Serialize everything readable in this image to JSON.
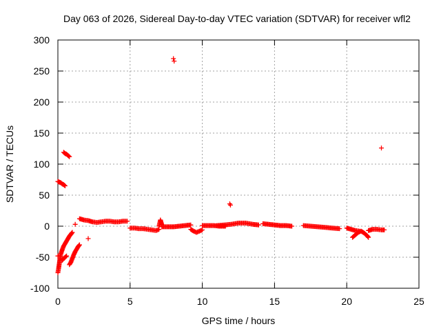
{
  "chart_data": {
    "type": "scatter",
    "title": "Day 063 of 2026, Sidereal Day-to-day VTEC variation (SDTVAR) for receiver wfl2",
    "xlabel": "GPS time / hours",
    "ylabel": "SDTVAR / TECUs",
    "xlim": [
      0,
      25
    ],
    "ylim": [
      -100,
      300
    ],
    "xticks": [
      0,
      5,
      10,
      15,
      20,
      25
    ],
    "yticks": [
      -100,
      -50,
      0,
      50,
      100,
      150,
      200,
      250,
      300
    ],
    "grid": true,
    "marker": "+",
    "color": "#ff0000",
    "series": [
      {
        "name": "SDTVAR",
        "segments": [
          [
            [
              0.0,
              72
            ],
            [
              0.1,
              71
            ],
            [
              0.2,
              70
            ],
            [
              0.3,
              68
            ],
            [
              0.4,
              67
            ],
            [
              0.5,
              65
            ]
          ],
          [
            [
              0.4,
              119
            ],
            [
              0.5,
              117
            ],
            [
              0.6,
              116
            ],
            [
              0.7,
              114
            ],
            [
              0.8,
              112
            ]
          ],
          [
            [
              0.0,
              -75
            ],
            [
              0.05,
              -68
            ],
            [
              0.1,
              -60
            ],
            [
              0.15,
              -52
            ],
            [
              0.2,
              -45
            ],
            [
              0.3,
              -38
            ],
            [
              0.4,
              -32
            ],
            [
              0.5,
              -28
            ],
            [
              0.6,
              -24
            ],
            [
              0.7,
              -20
            ],
            [
              0.8,
              -16
            ],
            [
              0.9,
              -13
            ],
            [
              1.0,
              -10
            ]
          ],
          [
            [
              0.3,
              -55
            ],
            [
              0.4,
              -52
            ],
            [
              0.5,
              -50
            ],
            [
              0.6,
              -48
            ]
          ],
          [
            [
              0.8,
              -62
            ],
            [
              0.9,
              -58
            ],
            [
              1.0,
              -52
            ],
            [
              1.1,
              -46
            ],
            [
              1.2,
              -41
            ],
            [
              1.3,
              -37
            ],
            [
              1.4,
              -33
            ],
            [
              1.5,
              -30
            ]
          ],
          [
            [
              1.5,
              12
            ],
            [
              1.8,
              10
            ],
            [
              2.1,
              9
            ],
            [
              2.4,
              7
            ],
            [
              2.7,
              6
            ],
            [
              3.0,
              7
            ],
            [
              3.3,
              8
            ],
            [
              3.6,
              8
            ],
            [
              3.9,
              7
            ],
            [
              4.2,
              7
            ],
            [
              4.5,
              8
            ],
            [
              4.8,
              8
            ]
          ],
          [
            [
              5.0,
              -3
            ],
            [
              5.3,
              -3
            ],
            [
              5.6,
              -4
            ],
            [
              5.9,
              -4
            ],
            [
              6.2,
              -5
            ],
            [
              6.5,
              -6
            ],
            [
              6.8,
              -7
            ],
            [
              7.0,
              -5
            ]
          ],
          [
            [
              7.0,
              0
            ],
            [
              7.05,
              5
            ],
            [
              7.1,
              10
            ],
            [
              7.15,
              6
            ],
            [
              7.2,
              2
            ]
          ],
          [
            [
              7.2,
              -1
            ],
            [
              7.6,
              -1
            ],
            [
              8.0,
              -1
            ],
            [
              8.4,
              0
            ],
            [
              8.8,
              1
            ],
            [
              9.2,
              2
            ]
          ],
          [
            [
              9.2,
              -5
            ],
            [
              9.4,
              -8
            ],
            [
              9.6,
              -10
            ],
            [
              9.8,
              -8
            ],
            [
              10.0,
              -6
            ]
          ],
          [
            [
              10.0,
              1
            ],
            [
              10.4,
              1
            ],
            [
              10.8,
              1
            ],
            [
              11.2,
              0
            ],
            [
              11.6,
              0
            ]
          ],
          [
            [
              11.0,
              1
            ],
            [
              11.5,
              2
            ],
            [
              12.0,
              3
            ],
            [
              12.5,
              5
            ],
            [
              13.0,
              5
            ],
            [
              13.5,
              3
            ],
            [
              13.9,
              2
            ]
          ],
          [
            [
              14.2,
              4
            ],
            [
              14.6,
              3
            ],
            [
              15.0,
              2
            ],
            [
              15.4,
              1
            ],
            [
              15.8,
              1
            ],
            [
              16.2,
              0
            ]
          ],
          [
            [
              17.0,
              1
            ],
            [
              17.5,
              0
            ],
            [
              18.0,
              -1
            ],
            [
              18.5,
              -2
            ],
            [
              19.0,
              -3
            ],
            [
              19.5,
              -4
            ]
          ],
          [
            [
              20.0,
              -3
            ],
            [
              20.3,
              -5
            ],
            [
              20.6,
              -7
            ],
            [
              20.9,
              -8
            ]
          ],
          [
            [
              20.4,
              -18
            ],
            [
              20.6,
              -14
            ],
            [
              20.8,
              -10
            ],
            [
              21.0,
              -8
            ],
            [
              21.2,
              -11
            ],
            [
              21.4,
              -15
            ],
            [
              21.5,
              -18
            ]
          ],
          [
            [
              21.5,
              -7
            ],
            [
              21.8,
              -5
            ],
            [
              22.1,
              -5
            ],
            [
              22.4,
              -6
            ],
            [
              22.6,
              -6
            ]
          ]
        ],
        "outliers": [
          [
            8.0,
            270
          ],
          [
            8.05,
            266
          ],
          [
            11.9,
            36
          ],
          [
            11.95,
            34
          ],
          [
            22.4,
            126
          ],
          [
            1.2,
            3
          ],
          [
            2.1,
            -20
          ],
          [
            0.0,
            -48
          ]
        ]
      }
    ]
  }
}
